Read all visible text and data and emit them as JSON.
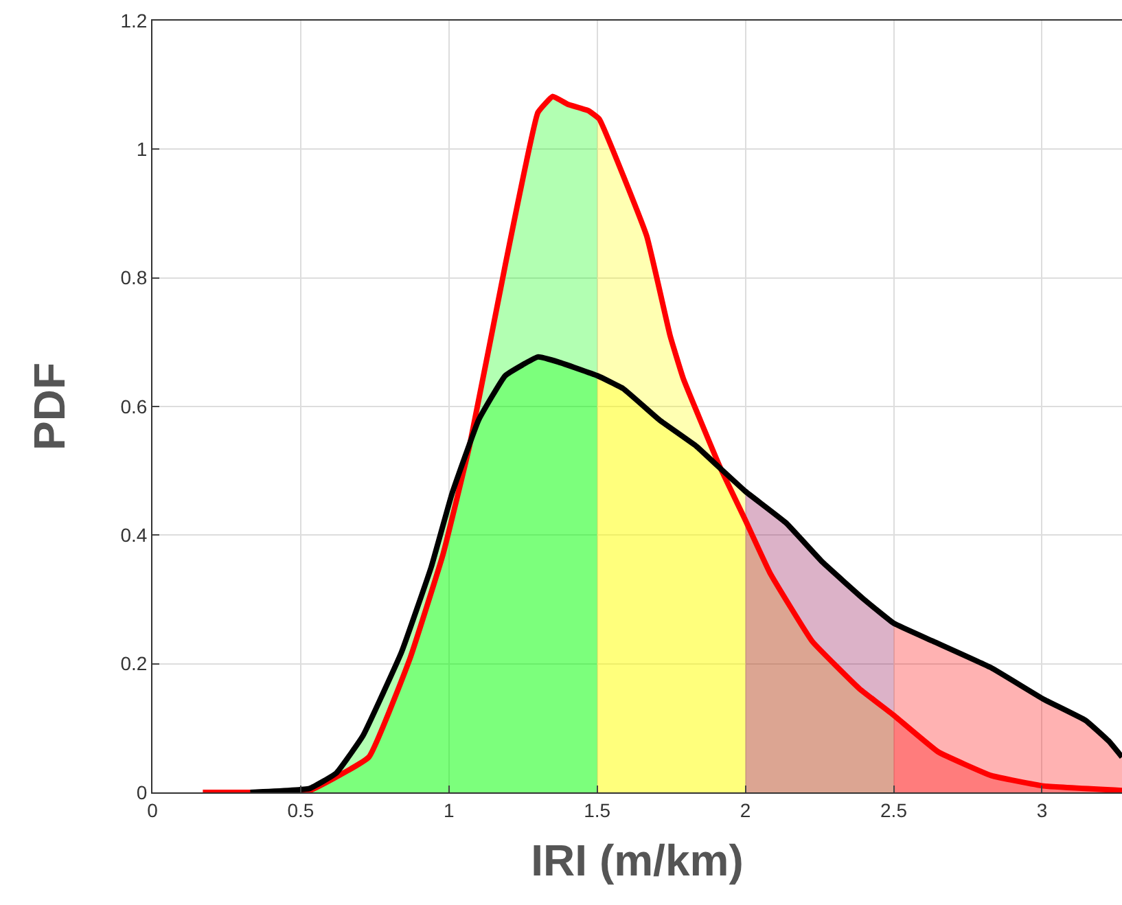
{
  "chart_data": {
    "type": "line",
    "xlabel": "IRI (m/km)",
    "ylabel": "PDF",
    "xlim": [
      0,
      3.27
    ],
    "xticks": [
      0,
      0.5,
      1,
      1.5,
      2,
      2.5,
      3
    ],
    "ylim": [
      0,
      1.2
    ],
    "yticks": [
      0,
      0.2,
      0.4,
      0.6,
      0.8,
      1,
      1.2
    ],
    "grid": true,
    "series": [
      {
        "type": "area",
        "color": "#00ff00",
        "x": [
          0.17,
          0.33,
          0.53,
          0.73,
          0.87,
          0.98,
          1.07,
          1.19,
          1.3,
          1.35,
          1.4,
          1.47,
          1.5
        ],
        "values": [
          0,
          0,
          0.003,
          0.055,
          0.21,
          0.37,
          0.54,
          0.82,
          1.057,
          1.082,
          1.07,
          1.06,
          1.05
        ]
      },
      {
        "type": "area",
        "color": "#ffff00",
        "x": [
          1.5,
          1.507,
          1.667,
          1.746,
          1.79,
          1.915,
          2.0
        ],
        "values": [
          1.05,
          1.047,
          0.865,
          0.71,
          0.644,
          0.505,
          0.423
        ]
      },
      {
        "type": "area",
        "color": "#ffc000",
        "x": [
          2.0,
          2.083,
          2.225,
          2.385,
          2.5
        ],
        "values": [
          0.423,
          0.341,
          0.235,
          0.161,
          0.12
        ]
      },
      {
        "type": "area",
        "color": "#ff0000",
        "x": [
          2.5,
          2.65,
          2.83,
          3.005,
          3.27
        ],
        "values": [
          0.12,
          0.063,
          0.026,
          0.01,
          0.003
        ]
      },
      {
        "type": "area",
        "color": "#00ff00",
        "x": [
          0.33,
          0.53,
          0.62,
          0.71,
          0.84,
          0.94,
          1.01,
          1.1,
          1.19,
          1.3,
          1.37,
          1.5
        ],
        "values": [
          0,
          0.006,
          0.03,
          0.088,
          0.218,
          0.35,
          0.464,
          0.579,
          0.648,
          0.677,
          0.669,
          0.648
        ]
      },
      {
        "type": "area",
        "color": "#ffff00",
        "x": [
          1.5,
          1.587,
          1.71,
          1.835,
          1.924,
          2.0
        ],
        "values": [
          0.648,
          0.628,
          0.579,
          0.538,
          0.5,
          0.468
        ]
      },
      {
        "type": "area",
        "color": "#8a0048",
        "x": [
          2.0,
          2.137,
          2.26,
          2.4,
          2.5
        ],
        "values": [
          0.468,
          0.419,
          0.358,
          0.3,
          0.263
        ]
      },
      {
        "type": "area",
        "color": "#ff0000",
        "x": [
          2.5,
          2.633,
          2.828,
          3.005,
          3.147,
          3.227,
          3.27
        ],
        "values": [
          0.263,
          0.235,
          0.194,
          0.145,
          0.112,
          0.079,
          0.055
        ]
      },
      {
        "color": "#ff0000",
        "x": [
          0.17,
          0.33,
          0.53,
          0.73,
          0.87,
          0.98,
          1.07,
          1.19,
          1.3,
          1.35,
          1.4,
          1.47,
          1.507,
          1.667,
          1.746,
          1.79,
          1.915,
          2.0,
          2.083,
          2.225,
          2.385,
          2.5,
          2.65,
          2.83,
          3.005,
          3.27
        ],
        "values": [
          0,
          0,
          0.003,
          0.055,
          0.21,
          0.37,
          0.54,
          0.82,
          1.057,
          1.082,
          1.07,
          1.06,
          1.047,
          0.865,
          0.71,
          0.644,
          0.505,
          0.423,
          0.341,
          0.235,
          0.161,
          0.12,
          0.063,
          0.026,
          0.01,
          0.003
        ]
      },
      {
        "color": "#000000",
        "x": [
          0.33,
          0.53,
          0.62,
          0.71,
          0.84,
          0.94,
          1.01,
          1.1,
          1.19,
          1.3,
          1.37,
          1.5,
          1.587,
          1.71,
          1.835,
          1.924,
          2.0,
          2.137,
          2.26,
          2.4,
          2.5,
          2.633,
          2.828,
          3.005,
          3.147,
          3.227,
          3.27
        ],
        "values": [
          0,
          0.006,
          0.03,
          0.088,
          0.218,
          0.35,
          0.464,
          0.579,
          0.648,
          0.677,
          0.669,
          0.648,
          0.628,
          0.579,
          0.538,
          0.5,
          0.468,
          0.419,
          0.358,
          0.3,
          0.263,
          0.235,
          0.194,
          0.145,
          0.112,
          0.079,
          0.055
        ]
      }
    ]
  }
}
